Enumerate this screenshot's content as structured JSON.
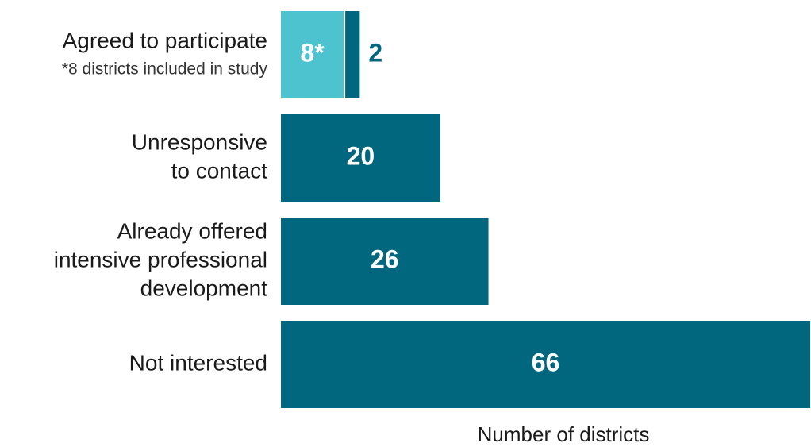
{
  "chart_data": {
    "type": "bar",
    "orientation": "horizontal",
    "stacked": true,
    "categories": [
      [
        "Agreed to participate"
      ],
      [
        "Unresponsive",
        "to contact"
      ],
      [
        "Already offered",
        "intensive professional",
        "development"
      ],
      [
        "Not interested"
      ]
    ],
    "note": "*8 districts included in study",
    "series": [
      {
        "color": "#4dc3d0",
        "values": [
          8,
          null,
          null,
          null
        ],
        "value_labels": [
          "8*",
          null,
          null,
          null
        ]
      },
      {
        "color": "#00677f",
        "values": [
          2,
          20,
          26,
          66
        ]
      }
    ],
    "xlim": [
      0,
      66
    ],
    "x_label": "Number of districts"
  }
}
